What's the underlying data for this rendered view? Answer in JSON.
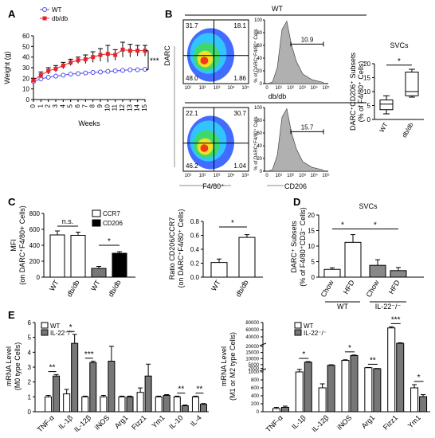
{
  "panels": {
    "A": "A",
    "B": "B",
    "C": "C",
    "D": "D",
    "E": "E"
  },
  "chart_data": [
    {
      "id": "A",
      "type": "line",
      "xlabel": "Weeks",
      "ylabel": "Weight (g)",
      "x": [
        0,
        1,
        2,
        3,
        4,
        5,
        6,
        7,
        8,
        9,
        10,
        11,
        12,
        13,
        14,
        15
      ],
      "xlim": [
        0,
        15
      ],
      "ylim": [
        0,
        60
      ],
      "yticks": [
        0,
        10,
        20,
        30,
        40,
        50,
        60
      ],
      "series": [
        {
          "name": "WT",
          "values": [
            17,
            19.5,
            21,
            22,
            23,
            24,
            24.5,
            25,
            25.5,
            26,
            26.5,
            27,
            27.5,
            28,
            28,
            28.5
          ],
          "color": "#4a4af0",
          "marker": "open-circle"
        },
        {
          "name": "db/db",
          "values": [
            18,
            23,
            27,
            29,
            32,
            35,
            37,
            38,
            40,
            42,
            43,
            42,
            47,
            46,
            46,
            46
          ],
          "errors": [
            2,
            3,
            3,
            3,
            3,
            3,
            3,
            4,
            5,
            6,
            8,
            5,
            7,
            6,
            5,
            5
          ],
          "color": "#e8242a",
          "marker": "filled-square"
        }
      ],
      "annotation": "***"
    },
    {
      "id": "B",
      "type": "scatter",
      "title": "WT",
      "subtitle": "db/db",
      "flow_xlabel": "F4/80⁺",
      "flow_ylabel": "DARC",
      "hist_xlabel": "CD206",
      "hist_ylabel": "% of DARC⁺F4/80⁺ Cells",
      "flow_ticks": [
        "10¹",
        "10²",
        "10³",
        "10⁴",
        "10⁵"
      ],
      "hist_ticks": [
        "0",
        "10¹",
        "10²",
        "10³",
        "10⁴",
        "10⁵"
      ],
      "hist_yticks": [
        "0",
        "20",
        "40",
        "60",
        "80",
        "100"
      ],
      "wt_quadrants": {
        "ul": "31.7",
        "ur": "18.1",
        "ll": "48.0",
        "lr": "1.86"
      },
      "dbdb_quadrants": {
        "ul": "22.1",
        "ur": "30.7",
        "ll": "46.2",
        "lr": "1.04"
      },
      "wt_gate": "10.9",
      "dbdb_gate": "15.7"
    },
    {
      "id": "B-box",
      "type": "bar",
      "title": "SVCs",
      "ylabel": "DARC⁺CD206⁺ Subsets (% of F4/80⁺ Cells)",
      "categories": [
        "WT",
        "db/db"
      ],
      "ylim": [
        0,
        20
      ],
      "yticks": [
        0,
        5,
        10,
        15,
        20
      ],
      "boxes": [
        {
          "min": 2,
          "q1": 3.5,
          "median": 5.5,
          "q3": 7,
          "max": 8.5
        },
        {
          "min": 8,
          "q1": 8.5,
          "median": 10,
          "q3": 17,
          "max": 18
        }
      ],
      "annotation": "*"
    },
    {
      "id": "C-left",
      "type": "bar",
      "ylabel": "MFI (on DARC⁺F4/80+ Cells)",
      "categories": [
        "WT",
        "db/db",
        "WT",
        "db/db"
      ],
      "groups": [
        "CCR7",
        "CCR7",
        "CD206",
        "CD206"
      ],
      "values": [
        530,
        525,
        110,
        300
      ],
      "errors": [
        50,
        40,
        25,
        20
      ],
      "ylim": [
        0,
        800
      ],
      "yticks": [
        0,
        200,
        400,
        600,
        800
      ],
      "legend": [
        "CCR7",
        "CD206"
      ],
      "annotations": [
        "n.s.",
        "*"
      ]
    },
    {
      "id": "C-right",
      "type": "bar",
      "ylabel": "Ratio CD206/CCR7 (on DARC⁺F4/80⁺ Cells)",
      "categories": [
        "WT",
        "db/db"
      ],
      "values": [
        0.21,
        0.57
      ],
      "errors": [
        0.05,
        0.04
      ],
      "ylim": [
        0,
        0.8
      ],
      "yticks": [
        "0.0",
        "0.2",
        "0.4",
        "0.6",
        "0.8"
      ],
      "annotation": "*"
    },
    {
      "id": "D",
      "type": "bar",
      "title": "SVCs",
      "ylabel": "DARC⁺ Subsets (% of F4/80⁺CD3⁻ Cells)",
      "categories": [
        "Chow",
        "HFD",
        "Chow",
        "HFD"
      ],
      "groups": [
        "WT",
        "WT",
        "IL-22⁻/⁻",
        "IL-22⁻/⁻"
      ],
      "values": [
        2.5,
        11.2,
        3.8,
        2.1
      ],
      "errors": [
        0.5,
        2.5,
        1.8,
        1.0
      ],
      "ylim": [
        0,
        20
      ],
      "yticks": [
        0,
        5,
        10,
        15,
        20
      ],
      "annotations": [
        "*",
        "*"
      ]
    },
    {
      "id": "E-left",
      "type": "bar",
      "ylabel": "mRNA Level (M0 type Cells)",
      "categories": [
        "TNF-α",
        "IL-1β",
        "IL-12β",
        "iNOS",
        "Arg1",
        "Fizz1",
        "Ym1",
        "IL-10",
        "IL-4"
      ],
      "series": [
        {
          "name": "WT",
          "values": [
            1.0,
            1.2,
            1.0,
            1.0,
            1.0,
            1.3,
            1.0,
            1.0,
            1.0
          ],
          "errors": [
            0.1,
            0.3,
            0.05,
            0.1,
            0.05,
            0.3,
            0.05,
            0.05,
            0.05
          ]
        },
        {
          "name": "IL-22⁻/⁻",
          "values": [
            2.4,
            4.6,
            3.3,
            3.4,
            1.0,
            2.4,
            1.1,
            0.4,
            0.5
          ],
          "errors": [
            0.1,
            0.6,
            0.1,
            1.0,
            0.05,
            0.8,
            0.05,
            0.05,
            0.05
          ]
        }
      ],
      "ylim": [
        0,
        6
      ],
      "yticks": [
        0,
        1,
        2,
        3,
        4,
        5,
        6
      ],
      "annotations": [
        "**",
        "*",
        "***",
        "",
        "",
        "",
        "",
        "**",
        "**"
      ]
    },
    {
      "id": "E-right",
      "type": "bar",
      "ylabel": "mRNA Level (M1 or M2 type Cells)",
      "categories": [
        "TNF-α",
        "IL-1β",
        "IL-12β",
        "iNOS",
        "Arg1",
        "Fizz1",
        "Ym1"
      ],
      "series": [
        {
          "name": "WT",
          "values": [
            80,
            1000,
            600,
            8500,
            2500,
            65000,
            600
          ],
          "errors": [
            30,
            100,
            100,
            500,
            200,
            3000,
            80
          ]
        },
        {
          "name": "IL-22⁻/⁻",
          "values": [
            110,
            7000,
            4500,
            12500,
            1700,
            22000,
            380
          ],
          "errors": [
            30,
            500,
            400,
            400,
            150,
            1500,
            50
          ]
        }
      ],
      "yticks": [
        "0",
        "200",
        "400",
        "600",
        "800",
        "1000",
        "2000",
        "5000",
        "10000",
        "15000",
        "20000",
        "40000",
        "60000",
        "80000"
      ],
      "annotations": [
        "",
        "*",
        "",
        "*",
        "**",
        "***",
        "*"
      ]
    }
  ]
}
